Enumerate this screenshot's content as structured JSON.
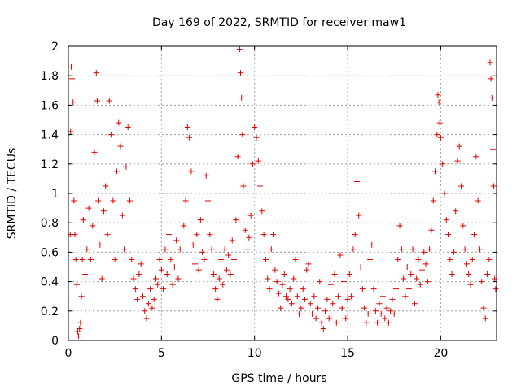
{
  "chart_data": {
    "type": "scatter",
    "title": "Day 169 of 2022, SRMTID for receiver maw1",
    "xlabel": "GPS time / hours",
    "ylabel": "SRMTID / TECUs",
    "xlim": [
      0,
      23
    ],
    "ylim": [
      0,
      2
    ],
    "x_ticks": [
      0,
      5,
      10,
      15,
      20
    ],
    "x_tick_labels": [
      "0",
      "5",
      "10",
      "15",
      "20"
    ],
    "y_ticks": [
      0,
      0.2,
      0.4,
      0.6,
      0.8,
      1,
      1.2,
      1.4,
      1.6,
      1.8,
      2
    ],
    "y_tick_labels": [
      "0",
      "0.2",
      "0.4",
      "0.6",
      "0.8",
      "1",
      "1.2",
      "1.4",
      "1.6",
      "1.8",
      "2"
    ],
    "grid": true,
    "marker": "plus",
    "color": "#e00000",
    "series": [
      {
        "name": "SRMTID",
        "points": [
          [
            0.1,
            0.72
          ],
          [
            0.12,
            1.42
          ],
          [
            0.15,
            1.86
          ],
          [
            0.2,
            1.78
          ],
          [
            0.25,
            1.62
          ],
          [
            0.3,
            0.95
          ],
          [
            0.35,
            0.72
          ],
          [
            0.4,
            0.55
          ],
          [
            0.45,
            0.38
          ],
          [
            0.5,
            0.06
          ],
          [
            0.55,
            0.03
          ],
          [
            0.6,
            0.08
          ],
          [
            0.65,
            0.12
          ],
          [
            0.7,
            0.3
          ],
          [
            0.75,
            0.55
          ],
          [
            0.8,
            0.82
          ],
          [
            0.9,
            0.45
          ],
          [
            1.0,
            0.62
          ],
          [
            1.1,
            0.9
          ],
          [
            1.2,
            0.55
          ],
          [
            1.3,
            0.78
          ],
          [
            1.4,
            1.28
          ],
          [
            1.5,
            1.82
          ],
          [
            1.55,
            1.63
          ],
          [
            1.6,
            0.95
          ],
          [
            1.7,
            0.65
          ],
          [
            1.8,
            0.42
          ],
          [
            1.9,
            0.88
          ],
          [
            2.0,
            1.05
          ],
          [
            2.1,
            0.72
          ],
          [
            2.2,
            1.63
          ],
          [
            2.3,
            1.4
          ],
          [
            2.4,
            0.95
          ],
          [
            2.5,
            0.55
          ],
          [
            2.6,
            1.15
          ],
          [
            2.7,
            1.48
          ],
          [
            2.8,
            1.32
          ],
          [
            2.9,
            0.85
          ],
          [
            3.0,
            0.62
          ],
          [
            3.1,
            1.18
          ],
          [
            3.2,
            1.45
          ],
          [
            3.3,
            0.95
          ],
          [
            3.4,
            0.55
          ],
          [
            3.5,
            0.42
          ],
          [
            3.6,
            0.35
          ],
          [
            3.7,
            0.28
          ],
          [
            3.8,
            0.45
          ],
          [
            3.9,
            0.52
          ],
          [
            4.0,
            0.3
          ],
          [
            4.1,
            0.2
          ],
          [
            4.2,
            0.15
          ],
          [
            4.3,
            0.25
          ],
          [
            4.4,
            0.35
          ],
          [
            4.5,
            0.22
          ],
          [
            4.6,
            0.28
          ],
          [
            4.7,
            0.42
          ],
          [
            4.8,
            0.38
          ],
          [
            4.9,
            0.55
          ],
          [
            5.0,
            0.48
          ],
          [
            5.1,
            0.35
          ],
          [
            5.2,
            0.62
          ],
          [
            5.3,
            0.45
          ],
          [
            5.4,
            0.72
          ],
          [
            5.5,
            0.55
          ],
          [
            5.6,
            0.38
          ],
          [
            5.7,
            0.5
          ],
          [
            5.8,
            0.68
          ],
          [
            5.9,
            0.42
          ],
          [
            6.0,
            0.62
          ],
          [
            6.1,
            0.5
          ],
          [
            6.2,
            0.78
          ],
          [
            6.3,
            0.95
          ],
          [
            6.4,
            1.45
          ],
          [
            6.5,
            1.38
          ],
          [
            6.6,
            1.15
          ],
          [
            6.7,
            0.65
          ],
          [
            6.8,
            0.52
          ],
          [
            6.9,
            0.72
          ],
          [
            7.0,
            0.48
          ],
          [
            7.1,
            0.82
          ],
          [
            7.2,
            0.6
          ],
          [
            7.3,
            0.55
          ],
          [
            7.4,
            1.12
          ],
          [
            7.5,
            0.95
          ],
          [
            7.6,
            0.72
          ],
          [
            7.7,
            0.62
          ],
          [
            7.8,
            0.45
          ],
          [
            7.9,
            0.35
          ],
          [
            8.0,
            0.28
          ],
          [
            8.1,
            0.42
          ],
          [
            8.2,
            0.55
          ],
          [
            8.3,
            0.38
          ],
          [
            8.4,
            0.62
          ],
          [
            8.5,
            0.48
          ],
          [
            8.6,
            0.58
          ],
          [
            8.7,
            0.45
          ],
          [
            8.8,
            0.68
          ],
          [
            8.9,
            0.55
          ],
          [
            9.0,
            0.82
          ],
          [
            9.1,
            1.25
          ],
          [
            9.2,
            1.98
          ],
          [
            9.25,
            1.82
          ],
          [
            9.3,
            1.65
          ],
          [
            9.35,
            1.4
          ],
          [
            9.4,
            1.05
          ],
          [
            9.5,
            0.75
          ],
          [
            9.6,
            0.62
          ],
          [
            9.7,
            0.7
          ],
          [
            9.8,
            0.85
          ],
          [
            9.9,
            1.2
          ],
          [
            10.0,
            1.45
          ],
          [
            10.1,
            1.38
          ],
          [
            10.2,
            1.22
          ],
          [
            10.3,
            1.05
          ],
          [
            10.4,
            0.88
          ],
          [
            10.5,
            0.72
          ],
          [
            10.6,
            0.55
          ],
          [
            10.7,
            0.42
          ],
          [
            10.8,
            0.35
          ],
          [
            10.9,
            0.62
          ],
          [
            11.0,
            0.72
          ],
          [
            11.1,
            0.48
          ],
          [
            11.2,
            0.4
          ],
          [
            11.3,
            0.32
          ],
          [
            11.4,
            0.22
          ],
          [
            11.5,
            0.38
          ],
          [
            11.6,
            0.45
          ],
          [
            11.7,
            0.3
          ],
          [
            11.8,
            0.28
          ],
          [
            11.9,
            0.35
          ],
          [
            12.0,
            0.25
          ],
          [
            12.1,
            0.42
          ],
          [
            12.2,
            0.55
          ],
          [
            12.3,
            0.3
          ],
          [
            12.4,
            0.18
          ],
          [
            12.5,
            0.22
          ],
          [
            12.6,
            0.35
          ],
          [
            12.7,
            0.28
          ],
          [
            12.8,
            0.48
          ],
          [
            12.9,
            0.52
          ],
          [
            13.0,
            0.25
          ],
          [
            13.1,
            0.18
          ],
          [
            13.2,
            0.3
          ],
          [
            13.3,
            0.15
          ],
          [
            13.4,
            0.22
          ],
          [
            13.5,
            0.4
          ],
          [
            13.6,
            0.12
          ],
          [
            13.7,
            0.08
          ],
          [
            13.8,
            0.2
          ],
          [
            13.9,
            0.28
          ],
          [
            14.0,
            0.15
          ],
          [
            14.1,
            0.38
          ],
          [
            14.2,
            0.25
          ],
          [
            14.3,
            0.45
          ],
          [
            14.4,
            0.12
          ],
          [
            14.5,
            0.3
          ],
          [
            14.6,
            0.58
          ],
          [
            14.7,
            0.22
          ],
          [
            14.8,
            0.4
          ],
          [
            14.9,
            0.15
          ],
          [
            15.0,
            0.28
          ],
          [
            15.1,
            0.45
          ],
          [
            15.2,
            0.3
          ],
          [
            15.3,
            0.62
          ],
          [
            15.4,
            0.72
          ],
          [
            15.5,
            1.08
          ],
          [
            15.6,
            0.85
          ],
          [
            15.7,
            0.5
          ],
          [
            15.8,
            0.35
          ],
          [
            15.9,
            0.22
          ],
          [
            16.0,
            0.12
          ],
          [
            16.1,
            0.18
          ],
          [
            16.2,
            0.55
          ],
          [
            16.3,
            0.65
          ],
          [
            16.4,
            0.35
          ],
          [
            16.5,
            0.2
          ],
          [
            16.6,
            0.12
          ],
          [
            16.7,
            0.25
          ],
          [
            16.8,
            0.18
          ],
          [
            16.9,
            0.3
          ],
          [
            17.0,
            0.15
          ],
          [
            17.1,
            0.22
          ],
          [
            17.2,
            0.12
          ],
          [
            17.3,
            0.2
          ],
          [
            17.4,
            0.28
          ],
          [
            17.5,
            0.18
          ],
          [
            17.6,
            0.35
          ],
          [
            17.7,
            0.55
          ],
          [
            17.8,
            0.78
          ],
          [
            17.9,
            0.62
          ],
          [
            18.0,
            0.42
          ],
          [
            18.1,
            0.3
          ],
          [
            18.2,
            0.5
          ],
          [
            18.3,
            0.35
          ],
          [
            18.4,
            0.45
          ],
          [
            18.5,
            0.62
          ],
          [
            18.6,
            0.25
          ],
          [
            18.7,
            0.42
          ],
          [
            18.8,
            0.55
          ],
          [
            18.9,
            0.38
          ],
          [
            19.0,
            0.48
          ],
          [
            19.1,
            0.6
          ],
          [
            19.2,
            0.52
          ],
          [
            19.3,
            0.4
          ],
          [
            19.4,
            0.62
          ],
          [
            19.5,
            0.75
          ],
          [
            19.6,
            0.95
          ],
          [
            19.7,
            1.15
          ],
          [
            19.8,
            1.4
          ],
          [
            19.85,
            1.67
          ],
          [
            19.9,
            1.62
          ],
          [
            19.95,
            1.48
          ],
          [
            20.0,
            1.38
          ],
          [
            20.1,
            1.2
          ],
          [
            20.2,
            1.0
          ],
          [
            20.3,
            0.82
          ],
          [
            20.4,
            0.72
          ],
          [
            20.5,
            0.55
          ],
          [
            20.6,
            0.45
          ],
          [
            20.7,
            0.6
          ],
          [
            20.8,
            0.88
          ],
          [
            20.9,
            1.22
          ],
          [
            21.0,
            1.32
          ],
          [
            21.1,
            1.05
          ],
          [
            21.2,
            0.78
          ],
          [
            21.3,
            0.62
          ],
          [
            21.4,
            0.52
          ],
          [
            21.5,
            0.45
          ],
          [
            21.6,
            0.38
          ],
          [
            21.7,
            0.55
          ],
          [
            21.8,
            0.72
          ],
          [
            21.9,
            1.25
          ],
          [
            22.0,
            0.95
          ],
          [
            22.1,
            0.62
          ],
          [
            22.2,
            0.4
          ],
          [
            22.3,
            0.22
          ],
          [
            22.4,
            0.15
          ],
          [
            22.5,
            0.45
          ],
          [
            22.6,
            0.55
          ],
          [
            22.65,
            1.89
          ],
          [
            22.7,
            1.78
          ],
          [
            22.75,
            1.65
          ],
          [
            22.8,
            1.3
          ],
          [
            22.85,
            1.05
          ],
          [
            22.9,
            0.42
          ],
          [
            22.95,
            0.35
          ]
        ]
      }
    ]
  }
}
